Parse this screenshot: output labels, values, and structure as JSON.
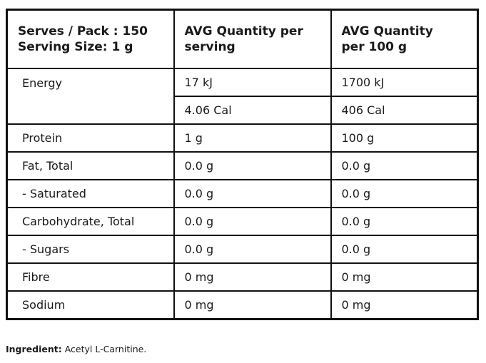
{
  "table": {
    "header": [
      [
        "Serves / Pack : 150",
        "Serving Size: 1 g"
      ],
      [
        "AVG Quantity per",
        "serving"
      ],
      [
        "AVG Quantity",
        "per 100 g"
      ]
    ],
    "energy": {
      "label": "Energy",
      "rows": [
        [
          "17 kJ",
          "1700 kJ"
        ],
        [
          "4.06 Cal",
          "406 Cal"
        ]
      ]
    },
    "rows": [
      [
        "Protein",
        "1 g",
        "100 g"
      ],
      [
        "Fat, Total",
        "0.0 g",
        "0.0 g"
      ],
      [
        "- Saturated",
        "0.0 g",
        "0.0 g"
      ],
      [
        "Carbohydrate, Total",
        "0.0 g",
        "0.0 g"
      ],
      [
        "- Sugars",
        "0.0 g",
        "0.0 g"
      ],
      [
        "Fibre",
        "0 mg",
        "0 mg"
      ],
      [
        "Sodium",
        "0 mg",
        "0 mg"
      ]
    ]
  },
  "footer": {
    "label": "Ingredient:",
    "text": "Acetyl L-Carnitine."
  }
}
